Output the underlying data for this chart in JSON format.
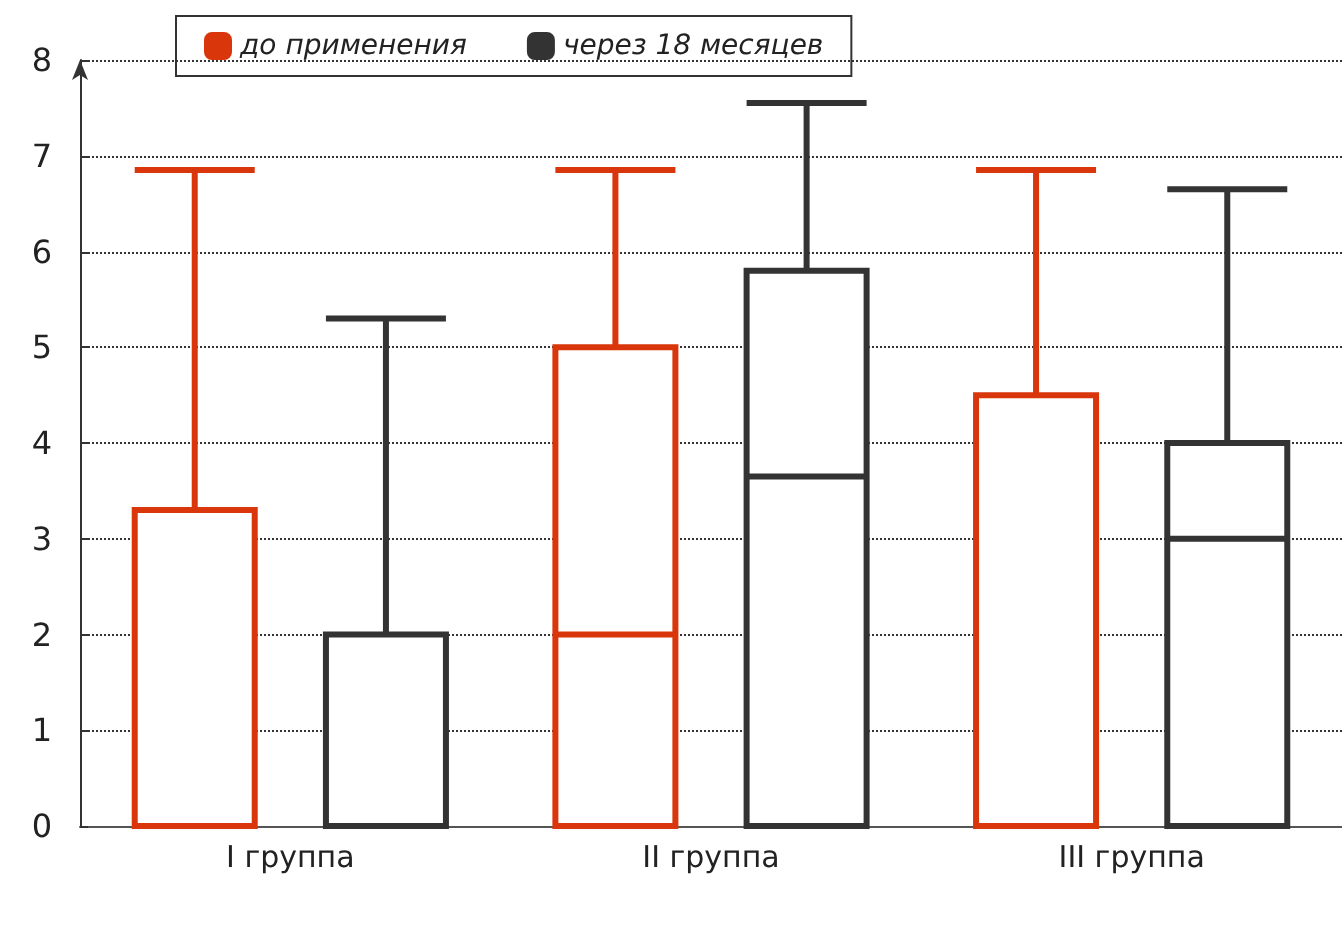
{
  "chart_data": {
    "type": "box",
    "categories": [
      "I группа",
      "II группа",
      "III группа"
    ],
    "series": [
      {
        "name": "до применения",
        "color": "#d9360b",
        "boxes": [
          {
            "low": 0,
            "q1": 0,
            "median": 0,
            "q3": 3.3,
            "high": 6.85
          },
          {
            "low": 0,
            "q1": 0,
            "median": 2,
            "q3": 5,
            "high": 6.85
          },
          {
            "low": 0,
            "q1": 0,
            "median": 0,
            "q3": 4.5,
            "high": 6.85
          }
        ]
      },
      {
        "name": "через 18 месяцев",
        "color": "#333333",
        "boxes": [
          {
            "low": 0,
            "q1": 0,
            "median": 0,
            "q3": 2,
            "high": 5.3
          },
          {
            "low": 0,
            "q1": 0,
            "median": 3.65,
            "q3": 5.8,
            "high": 7.55
          },
          {
            "low": 0,
            "q1": 0,
            "median": 3,
            "q3": 4,
            "high": 6.65
          }
        ]
      }
    ],
    "ylim": [
      0,
      8
    ],
    "yticks": [
      0,
      1,
      2,
      3,
      4,
      5,
      6,
      7,
      8
    ],
    "grid": "y",
    "legend": "top left"
  }
}
